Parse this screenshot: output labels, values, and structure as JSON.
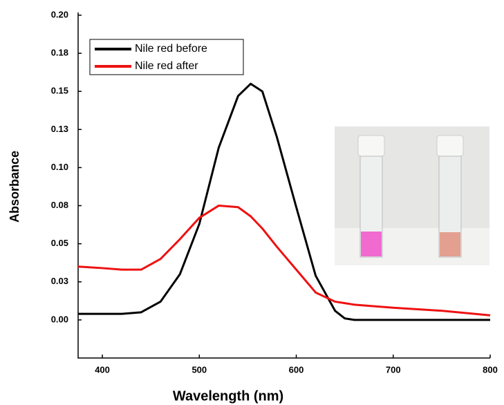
{
  "chart_data": {
    "type": "line",
    "x_label": "Wavelength (nm)",
    "y_label": "Absorbance",
    "xlim": [
      375,
      800
    ],
    "xticks": [
      400,
      500,
      600,
      700,
      800
    ],
    "ylim": [
      -0.025,
      0.2
    ],
    "yticks": [
      {
        "value": 0,
        "label": "0.00"
      },
      {
        "value": 0.025,
        "label": "0.03"
      },
      {
        "value": 0.05,
        "label": "0.05"
      },
      {
        "value": 0.075,
        "label": "0.08"
      },
      {
        "value": 0.1,
        "label": "0.10"
      },
      {
        "value": 0.125,
        "label": "0.13"
      },
      {
        "value": 0.15,
        "label": "0.15"
      },
      {
        "value": 0.175,
        "label": "0.18"
      },
      {
        "value": 0.2,
        "label": "0.20"
      }
    ],
    "x": [
      375,
      400,
      420,
      440,
      460,
      480,
      500,
      520,
      540,
      553,
      565,
      580,
      600,
      620,
      640,
      650,
      660,
      700,
      750,
      800
    ],
    "series": [
      {
        "name": "Nile red before",
        "color": "#000000",
        "values": [
          0.004,
          0.004,
          0.004,
          0.005,
          0.012,
          0.03,
          0.063,
          0.113,
          0.147,
          0.155,
          0.15,
          0.12,
          0.074,
          0.029,
          0.006,
          0.001,
          0,
          0,
          0,
          0
        ]
      },
      {
        "name": "Nile red after",
        "color": "#ee1111",
        "values": [
          0.035,
          0.034,
          0.033,
          0.033,
          0.04,
          0.053,
          0.067,
          0.075,
          0.074,
          0.068,
          0.06,
          0.048,
          0.033,
          0.018,
          0.012,
          0.011,
          0.01,
          0.008,
          0.006,
          0.003
        ]
      }
    ],
    "legend": "upper-left"
  }
}
